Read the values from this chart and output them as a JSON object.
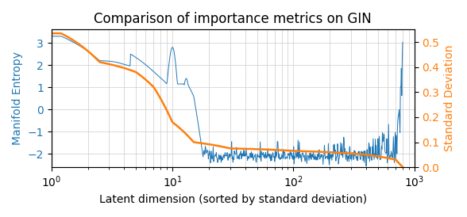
{
  "title": "Comparison of importance metrics on GIN",
  "xlabel": "Latent dimension (sorted by standard deviation)",
  "ylabel_left": "Manifold Entropy",
  "ylabel_right": "Standard Deviation",
  "blue_color": "#1f77b4",
  "orange_color": "#ff7f0e",
  "xlim": [
    1,
    1000
  ],
  "ylim_left": [
    -2.6,
    3.6
  ],
  "ylim_right": [
    0.0,
    0.55
  ],
  "yticks_left": [
    -2,
    -1,
    0,
    1,
    2,
    3
  ],
  "yticks_right": [
    0.0,
    0.1,
    0.2,
    0.3,
    0.4,
    0.5
  ],
  "n_points": 800,
  "figsize": [
    5.88,
    2.74
  ],
  "dpi": 100
}
